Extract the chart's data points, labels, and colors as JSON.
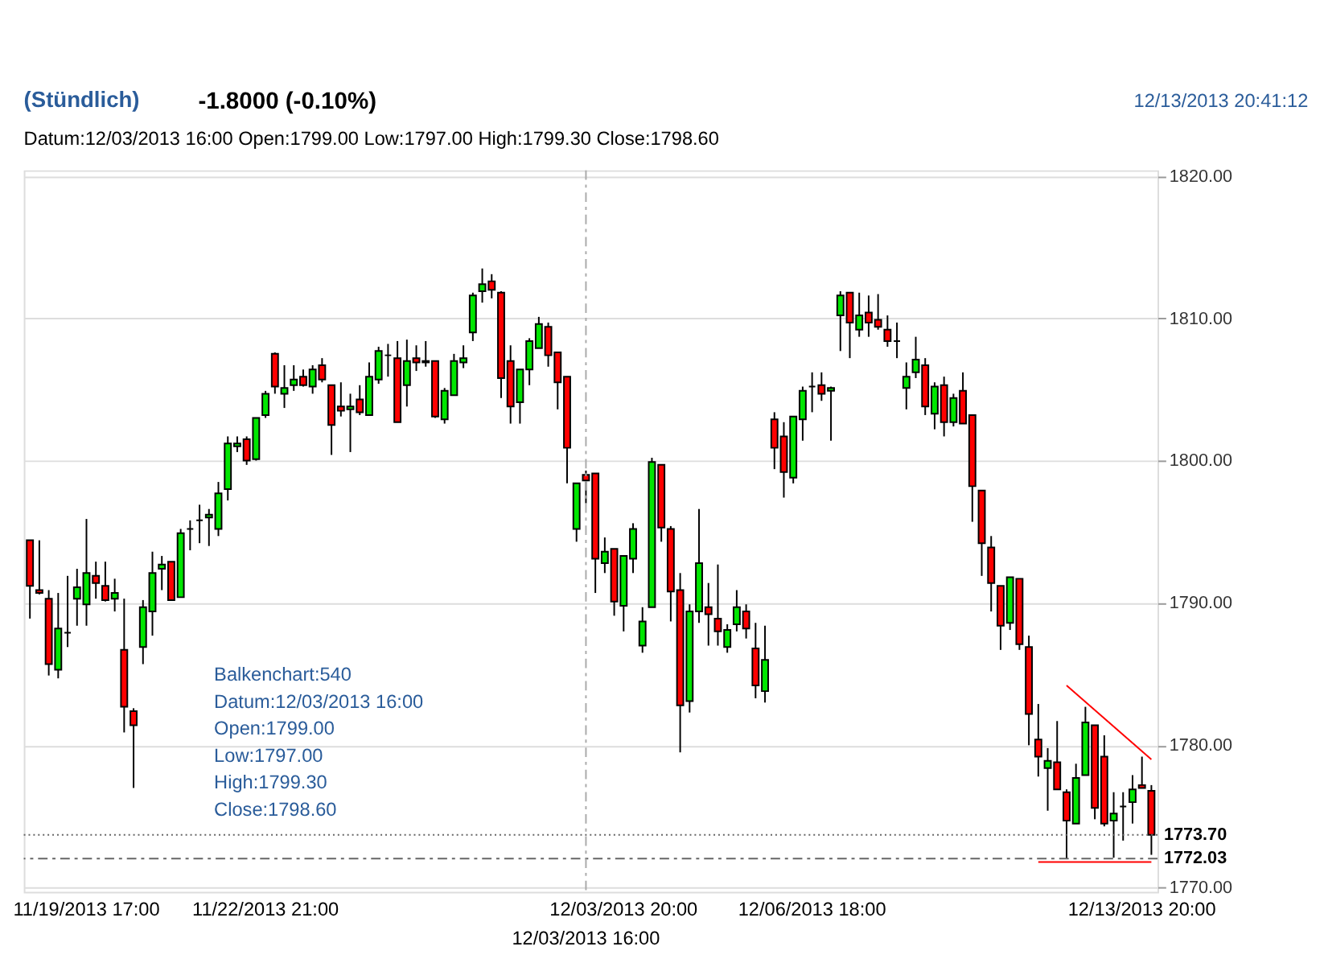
{
  "chart_data": {
    "type": "candlestick",
    "title": "(Stündlich)",
    "annotations": [
      "-1.8000 (-0.10%)",
      "12/13/2013 20:41:12",
      "Datum:12/03/2013 16:00 Open:1799.00 Low:1797.00 High:1799.30 Close:1798.60",
      "Balkenchart:540",
      "Datum:12/03/2013 16:00",
      "Open:1799.00",
      "Low:1797.00",
      "High:1799.30",
      "Close:1798.60"
    ],
    "categories": [
      null,
      null,
      null,
      null,
      null,
      null,
      "11/19/2013 17:00",
      null,
      null,
      null,
      null,
      null,
      null,
      null,
      null,
      null,
      null,
      null,
      null,
      null,
      null,
      null,
      null,
      null,
      null,
      "11/22/2013 21:00",
      null,
      null,
      null,
      null,
      null,
      null,
      null,
      null,
      null,
      null,
      null,
      null,
      null,
      null,
      null,
      null,
      null,
      null,
      null,
      null,
      null,
      null,
      null,
      null,
      null,
      null,
      null,
      null,
      null,
      null,
      null,
      null,
      null,
      "12/03/2013 16:00",
      null,
      null,
      null,
      "12/03/2013 20:00",
      null,
      null,
      null,
      null,
      null,
      null,
      null,
      null,
      null,
      null,
      null,
      null,
      null,
      null,
      null,
      null,
      null,
      null,
      null,
      "12/06/2013 18:00",
      null,
      null,
      null,
      null,
      null,
      null,
      null,
      null,
      null,
      null,
      null,
      null,
      null,
      null,
      null,
      null,
      null,
      null,
      null,
      null,
      null,
      null,
      null,
      null,
      null,
      null,
      null,
      null,
      null,
      null,
      null,
      null,
      null,
      null,
      "12/13/2013 20:00",
      null
    ],
    "ohlc": [
      [
        1794.4,
        1794.4,
        1788.9,
        1791.2
      ],
      [
        1790.9,
        1794.4,
        1790.6,
        1790.7
      ],
      [
        1790.3,
        1790.9,
        1784.9,
        1785.7
      ],
      [
        1785.3,
        1790.7,
        1784.7,
        1788.2
      ],
      [
        1787.9,
        1791.9,
        1786.9,
        1787.9
      ],
      [
        1790.3,
        1792.4,
        1788.4,
        1791.1
      ],
      [
        1789.9,
        1795.9,
        1788.4,
        1792.1
      ],
      [
        1791.9,
        1792.9,
        1790.3,
        1791.4
      ],
      [
        1791.2,
        1792.9,
        1790.1,
        1790.2
      ],
      [
        1790.3,
        1791.7,
        1789.4,
        1790.7
      ],
      [
        1786.7,
        1790.3,
        1780.9,
        1782.7
      ],
      [
        1782.4,
        1782.6,
        1777.0,
        1781.4
      ],
      [
        1786.9,
        1790.2,
        1785.7,
        1789.7
      ],
      [
        1789.4,
        1793.6,
        1787.7,
        1792.1
      ],
      [
        1792.4,
        1793.3,
        1790.9,
        1792.7
      ],
      [
        1792.9,
        1792.9,
        1790.2,
        1790.2
      ],
      [
        1790.4,
        1795.2,
        1790.4,
        1794.9
      ],
      [
        1795.2,
        1795.8,
        1793.7,
        1795.2
      ],
      [
        1795.8,
        1796.9,
        1794.2,
        1795.8
      ],
      [
        1796.0,
        1796.6,
        1794.0,
        1796.2
      ],
      [
        1795.2,
        1798.5,
        1794.7,
        1797.7
      ],
      [
        1798.0,
        1801.7,
        1797.2,
        1801.2
      ],
      [
        1801.0,
        1801.7,
        1800.6,
        1801.2
      ],
      [
        1801.5,
        1801.7,
        1799.7,
        1800.0
      ],
      [
        1800.1,
        1803.0,
        1800.0,
        1803.0
      ],
      [
        1803.2,
        1804.9,
        1803.0,
        1804.7
      ],
      [
        1807.5,
        1807.6,
        1804.7,
        1805.2
      ],
      [
        1804.7,
        1806.7,
        1803.7,
        1805.1
      ],
      [
        1805.3,
        1806.7,
        1804.9,
        1805.7
      ],
      [
        1805.9,
        1806.4,
        1805.2,
        1805.3
      ],
      [
        1805.2,
        1806.7,
        1804.7,
        1806.4
      ],
      [
        1806.7,
        1807.2,
        1805.5,
        1805.7
      ],
      [
        1805.3,
        1805.3,
        1800.4,
        1802.5
      ],
      [
        1803.8,
        1805.5,
        1803.1,
        1803.5
      ],
      [
        1803.6,
        1804.7,
        1800.6,
        1803.8
      ],
      [
        1804.3,
        1805.3,
        1803.2,
        1803.4
      ],
      [
        1803.2,
        1806.9,
        1803.2,
        1805.9
      ],
      [
        1805.7,
        1808.0,
        1805.4,
        1807.7
      ],
      [
        1807.4,
        1808.2,
        1805.9,
        1807.4
      ],
      [
        1807.2,
        1808.4,
        1802.7,
        1802.7
      ],
      [
        1805.3,
        1808.5,
        1803.8,
        1807.0
      ],
      [
        1807.2,
        1808.1,
        1806.3,
        1806.9
      ],
      [
        1807.0,
        1808.4,
        1806.6,
        1806.9
      ],
      [
        1807.0,
        1807.0,
        1803.0,
        1803.1
      ],
      [
        1802.9,
        1805.1,
        1802.6,
        1804.9
      ],
      [
        1804.6,
        1807.5,
        1804.6,
        1807.0
      ],
      [
        1806.9,
        1808.1,
        1806.5,
        1807.2
      ],
      [
        1809.0,
        1811.8,
        1808.4,
        1811.6
      ],
      [
        1811.9,
        1813.5,
        1811.1,
        1812.4
      ],
      [
        1812.6,
        1813.1,
        1811.4,
        1812.0
      ],
      [
        1811.8,
        1811.9,
        1804.4,
        1805.8
      ],
      [
        1807.0,
        1808.1,
        1802.6,
        1803.8
      ],
      [
        1804.1,
        1806.4,
        1802.6,
        1806.4
      ],
      [
        1806.4,
        1808.6,
        1805.3,
        1808.4
      ],
      [
        1807.9,
        1810.1,
        1807.9,
        1809.6
      ],
      [
        1809.4,
        1809.7,
        1806.6,
        1807.4
      ],
      [
        1807.6,
        1807.6,
        1803.6,
        1805.5
      ],
      [
        1805.9,
        1805.9,
        1798.4,
        1800.9
      ],
      [
        1795.2,
        1798.4,
        1794.3,
        1798.4
      ],
      [
        1799.0,
        1799.3,
        1797.0,
        1798.6
      ],
      [
        1799.1,
        1799.1,
        1790.7,
        1793.1
      ],
      [
        1792.8,
        1794.6,
        1792.1,
        1793.6
      ],
      [
        1793.8,
        1793.8,
        1789.1,
        1790.1
      ],
      [
        1789.8,
        1793.3,
        1788.0,
        1793.3
      ],
      [
        1793.1,
        1795.6,
        1792.1,
        1795.2
      ],
      [
        1787.0,
        1789.7,
        1786.5,
        1788.7
      ],
      [
        1789.7,
        1800.2,
        1789.7,
        1799.9
      ],
      [
        1799.7,
        1799.7,
        1794.3,
        1795.3
      ],
      [
        1795.2,
        1795.4,
        1788.7,
        1790.8
      ],
      [
        1790.9,
        1792.1,
        1779.5,
        1782.8
      ],
      [
        1783.1,
        1789.9,
        1782.3,
        1789.4
      ],
      [
        1789.4,
        1796.6,
        1788.6,
        1792.8
      ],
      [
        1789.7,
        1791.4,
        1787.0,
        1789.2
      ],
      [
        1788.9,
        1792.7,
        1787.0,
        1788.0
      ],
      [
        1786.9,
        1788.5,
        1786.5,
        1788.1
      ],
      [
        1788.5,
        1790.9,
        1788.0,
        1789.7
      ],
      [
        1789.4,
        1789.9,
        1787.5,
        1788.2
      ],
      [
        1786.8,
        1788.6,
        1783.3,
        1784.2
      ],
      [
        1783.8,
        1788.4,
        1783.0,
        1786.0
      ],
      [
        1802.9,
        1803.4,
        1799.4,
        1800.9
      ],
      [
        1801.7,
        1802.7,
        1797.4,
        1799.2
      ],
      [
        1798.8,
        1803.1,
        1798.4,
        1803.1
      ],
      [
        1802.9,
        1805.2,
        1801.4,
        1804.9
      ],
      [
        1805.2,
        1806.2,
        1803.4,
        1805.2
      ],
      [
        1805.3,
        1806.2,
        1804.2,
        1804.7
      ],
      [
        1804.9,
        1805.2,
        1801.4,
        1805.1
      ],
      [
        1810.2,
        1811.9,
        1807.7,
        1811.6
      ],
      [
        1811.8,
        1811.8,
        1807.2,
        1809.7
      ],
      [
        1809.2,
        1811.8,
        1808.7,
        1810.2
      ],
      [
        1810.4,
        1811.6,
        1808.7,
        1809.7
      ],
      [
        1809.9,
        1811.7,
        1809.2,
        1809.4
      ],
      [
        1809.2,
        1810.2,
        1808.0,
        1808.4
      ],
      [
        1808.4,
        1809.7,
        1807.2,
        1808.4
      ],
      [
        1805.1,
        1806.9,
        1803.6,
        1805.9
      ],
      [
        1806.2,
        1808.7,
        1805.8,
        1807.1
      ],
      [
        1806.7,
        1807.2,
        1803.2,
        1803.8
      ],
      [
        1803.3,
        1805.5,
        1802.2,
        1805.2
      ],
      [
        1805.3,
        1805.9,
        1801.7,
        1802.7
      ],
      [
        1802.7,
        1804.7,
        1802.4,
        1804.4
      ],
      [
        1804.9,
        1806.2,
        1802.6,
        1802.6
      ],
      [
        1803.2,
        1803.2,
        1795.7,
        1798.2
      ],
      [
        1797.9,
        1797.9,
        1791.9,
        1794.2
      ],
      [
        1793.9,
        1794.7,
        1789.4,
        1791.4
      ],
      [
        1791.2,
        1791.2,
        1786.7,
        1788.4
      ],
      [
        1788.6,
        1791.8,
        1788.1,
        1791.8
      ],
      [
        1791.7,
        1791.7,
        1786.7,
        1787.1
      ],
      [
        1786.9,
        1787.7,
        1780.0,
        1782.2
      ],
      [
        1780.4,
        1782.9,
        1777.8,
        1779.2
      ],
      [
        1778.4,
        1779.8,
        1775.4,
        1778.9
      ],
      [
        1778.8,
        1781.7,
        1776.9,
        1776.9
      ],
      [
        1776.7,
        1776.9,
        1772.0,
        1774.7
      ],
      [
        1774.5,
        1778.7,
        1774.5,
        1777.7
      ],
      [
        1777.9,
        1782.7,
        1777.9,
        1781.6
      ],
      [
        1781.4,
        1781.4,
        1774.8,
        1775.6
      ],
      [
        1779.2,
        1780.7,
        1774.3,
        1774.5
      ],
      [
        1774.7,
        1776.7,
        1772.1,
        1775.2
      ],
      [
        1775.7,
        1776.7,
        1773.3,
        1775.7
      ],
      [
        1776.0,
        1777.9,
        1774.5,
        1776.9
      ],
      [
        1777.2,
        1779.2,
        1777.0,
        1777.0
      ],
      [
        1776.8,
        1777.2,
        1772.3,
        1773.7
      ]
    ],
    "colors": [
      "#ff0000",
      "#ff0000",
      "#ff0000",
      "#00e600",
      "#000000",
      "#00e600",
      "#00e600",
      "#ff0000",
      "#ff0000",
      "#00e600",
      "#ff0000",
      "#ff0000",
      "#00e600",
      "#00e600",
      "#00e600",
      "#ff0000",
      "#00e600",
      "#000000",
      "#000000",
      "#00e600",
      "#00e600",
      "#00e600",
      "#00e600",
      "#ff0000",
      "#00e600",
      "#00e600",
      "#ff0000",
      "#00e600",
      "#00e600",
      "#ff0000",
      "#00e600",
      "#ff0000",
      "#ff0000",
      "#ff0000",
      "#00e600",
      "#ff0000",
      "#00e600",
      "#00e600",
      "#000000",
      "#ff0000",
      "#00e600",
      "#ff0000",
      "#ff0000",
      "#ff0000",
      "#00e600",
      "#00e600",
      "#00e600",
      "#00e600",
      "#00e600",
      "#ff0000",
      "#ff0000",
      "#ff0000",
      "#00e600",
      "#00e600",
      "#00e600",
      "#ff0000",
      "#ff0000",
      "#ff0000",
      "#00e600",
      "#ff0000",
      "#ff0000",
      "#00e600",
      "#ff0000",
      "#00e600",
      "#00e600",
      "#00e600",
      "#00e600",
      "#ff0000",
      "#ff0000",
      "#ff0000",
      "#00e600",
      "#00e600",
      "#ff0000",
      "#ff0000",
      "#00e600",
      "#00e600",
      "#ff0000",
      "#ff0000",
      "#00e600",
      "#ff0000",
      "#ff0000",
      "#00e600",
      "#00e600",
      "#000000",
      "#ff0000",
      "#00e600",
      "#00e600",
      "#ff0000",
      "#00e600",
      "#ff0000",
      "#ff0000",
      "#ff0000",
      "#000000",
      "#00e600",
      "#00e600",
      "#ff0000",
      "#00e600",
      "#ff0000",
      "#00e600",
      "#ff0000",
      "#ff0000",
      "#ff0000",
      "#ff0000",
      "#ff0000",
      "#00e600",
      "#ff0000",
      "#ff0000",
      "#ff0000",
      "#00e600",
      "#ff0000",
      "#ff0000",
      "#00e600",
      "#00e600",
      "#ff0000",
      "#ff0000",
      "#00e600",
      "#000000",
      "#00e600",
      "#ff0000",
      "#ff0000"
    ],
    "series": [
      {
        "type": "line",
        "color": "#ff0000",
        "values": [
          null,
          null,
          null,
          null,
          null,
          null,
          null,
          null,
          null,
          null,
          null,
          null,
          null,
          null,
          null,
          null,
          null,
          null,
          null,
          null,
          null,
          null,
          null,
          null,
          null,
          null,
          null,
          null,
          null,
          null,
          null,
          null,
          null,
          null,
          null,
          null,
          null,
          null,
          null,
          null,
          null,
          null,
          null,
          null,
          null,
          null,
          null,
          null,
          null,
          null,
          null,
          null,
          null,
          null,
          null,
          null,
          null,
          null,
          null,
          null,
          null,
          null,
          null,
          null,
          null,
          null,
          null,
          null,
          null,
          null,
          null,
          null,
          null,
          null,
          null,
          null,
          null,
          null,
          null,
          null,
          null,
          null,
          null,
          null,
          null,
          null,
          null,
          null,
          null,
          null,
          null,
          null,
          null,
          null,
          null,
          null,
          null,
          null,
          null,
          null,
          null,
          null,
          null,
          null,
          null,
          null,
          null,
          null,
          null,
          null,
          1784.2,
          null,
          null,
          null,
          null,
          null,
          null,
          null,
          null,
          1779.0
        ]
      },
      {
        "type": "line",
        "color": "#ff0000",
        "values": [
          null,
          null,
          null,
          null,
          null,
          null,
          null,
          null,
          null,
          null,
          null,
          null,
          null,
          null,
          null,
          null,
          null,
          null,
          null,
          null,
          null,
          null,
          null,
          null,
          null,
          null,
          null,
          null,
          null,
          null,
          null,
          null,
          null,
          null,
          null,
          null,
          null,
          null,
          null,
          null,
          null,
          null,
          null,
          null,
          null,
          null,
          null,
          null,
          null,
          null,
          null,
          null,
          null,
          null,
          null,
          null,
          null,
          null,
          null,
          null,
          null,
          null,
          null,
          null,
          null,
          null,
          null,
          null,
          null,
          null,
          null,
          null,
          null,
          null,
          null,
          null,
          null,
          null,
          null,
          null,
          null,
          null,
          null,
          null,
          null,
          null,
          null,
          null,
          null,
          null,
          null,
          null,
          null,
          null,
          null,
          null,
          null,
          null,
          null,
          null,
          null,
          null,
          null,
          null,
          null,
          null,
          null,
          1771.8,
          null,
          null,
          null,
          null,
          null,
          null,
          null,
          null,
          null,
          null,
          null,
          1771.8
        ]
      }
    ],
    "ylim": [
      1769.7,
      1820.4
    ],
    "yticks": [
      {
        "value": 1770,
        "label": "1770.00"
      },
      {
        "value": 1780,
        "label": "1780.00"
      },
      {
        "value": 1790,
        "label": "1790.00"
      },
      {
        "value": 1800,
        "label": "1800.00"
      },
      {
        "value": 1810,
        "label": "1810.00"
      },
      {
        "value": 1820,
        "label": "1820.00"
      }
    ],
    "grid": "y",
    "ref_lines": [
      {
        "axis": "y",
        "value": 1773.7,
        "label": "1773.70",
        "line_style": "dotted"
      },
      {
        "axis": "y",
        "value": 1772.03,
        "label": "1772.03",
        "line_style": "dashed"
      },
      {
        "axis": "x",
        "value": "12/03/2013 16:00",
        "line_style": "dashed"
      }
    ]
  }
}
